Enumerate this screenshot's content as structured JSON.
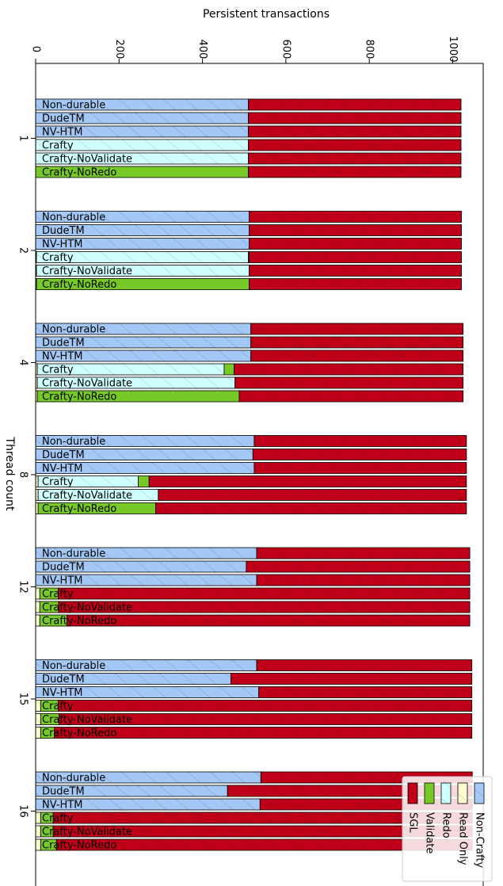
{
  "chart_data": {
    "type": "bar",
    "orientation": "horizontal-stacked",
    "xlabel": "Persistent transactions",
    "ylabel": "Thread count",
    "xlim": [
      0,
      1050
    ],
    "xticks": [
      0,
      200,
      400,
      600,
      800,
      1000
    ],
    "segment_order": [
      "Non-Crafty",
      "Read Only",
      "Redo",
      "Validate",
      "SGL"
    ],
    "legend": {
      "placement": "lower-right",
      "entries": [
        {
          "name": "Non-Crafty",
          "color": "#a3c8f5",
          "hatch": true
        },
        {
          "name": "Read Only",
          "color": "#fffbd0",
          "hatch": true
        },
        {
          "name": "Redo",
          "color": "#cfffff",
          "hatch": true
        },
        {
          "name": "Validate",
          "color": "#77c928",
          "hatch": false
        },
        {
          "name": "SGL",
          "color": "#c00018",
          "hatch": true
        }
      ]
    },
    "groups": [
      {
        "thread_count": "1",
        "bars": [
          {
            "label": "Non-durable",
            "values": [
              510,
              0,
              0,
              0,
              510
            ]
          },
          {
            "label": "DudeTM",
            "values": [
              510,
              0,
              0,
              0,
              510
            ]
          },
          {
            "label": "NV-HTM",
            "values": [
              510,
              0,
              0,
              0,
              510
            ]
          },
          {
            "label": "Crafty",
            "values": [
              0,
              0,
              510,
              0,
              510
            ]
          },
          {
            "label": "Crafty-NoValidate",
            "values": [
              0,
              0,
              510,
              0,
              510
            ]
          },
          {
            "label": "Crafty-NoRedo",
            "values": [
              0,
              0,
              0,
              510,
              510
            ]
          }
        ]
      },
      {
        "thread_count": "2",
        "bars": [
          {
            "label": "Non-durable",
            "values": [
              512,
              0,
              0,
              0,
              509
            ]
          },
          {
            "label": "DudeTM",
            "values": [
              512,
              0,
              0,
              0,
              509
            ]
          },
          {
            "label": "NV-HTM",
            "values": [
              512,
              0,
              0,
              0,
              509
            ]
          },
          {
            "label": "Crafty",
            "values": [
              0,
              2,
              508,
              2,
              509
            ]
          },
          {
            "label": "Crafty-NoValidate",
            "values": [
              0,
              2,
              510,
              0,
              509
            ]
          },
          {
            "label": "Crafty-NoRedo",
            "values": [
              0,
              2,
              0,
              510,
              509
            ]
          }
        ]
      },
      {
        "thread_count": "4",
        "bars": [
          {
            "label": "Non-durable",
            "values": [
              516,
              0,
              0,
              0,
              509
            ]
          },
          {
            "label": "DudeTM",
            "values": [
              516,
              0,
              0,
              0,
              509
            ]
          },
          {
            "label": "NV-HTM",
            "values": [
              516,
              0,
              0,
              0,
              509
            ]
          },
          {
            "label": "Crafty",
            "values": [
              0,
              4,
              448,
              24,
              549
            ]
          },
          {
            "label": "Crafty-NoValidate",
            "values": [
              0,
              4,
              474,
              0,
              547
            ]
          },
          {
            "label": "Crafty-NoRedo",
            "values": [
              0,
              4,
              0,
              484,
              537
            ]
          }
        ]
      },
      {
        "thread_count": "8",
        "bars": [
          {
            "label": "Non-durable",
            "values": [
              524,
              0,
              0,
              0,
              509
            ]
          },
          {
            "label": "DudeTM",
            "values": [
              521,
              0,
              0,
              0,
              512
            ]
          },
          {
            "label": "NV-HTM",
            "values": [
              524,
              0,
              0,
              0,
              509
            ]
          },
          {
            "label": "Crafty",
            "values": [
              0,
              6,
              240,
              26,
              761
            ]
          },
          {
            "label": "Crafty-NoValidate",
            "values": [
              0,
              6,
              288,
              0,
              739
            ]
          },
          {
            "label": "Crafty-NoRedo",
            "values": [
              0,
              6,
              0,
              282,
              745
            ]
          }
        ]
      },
      {
        "thread_count": "12",
        "bars": [
          {
            "label": "Non-durable",
            "values": [
              530,
              0,
              0,
              0,
              511
            ]
          },
          {
            "label": "DudeTM",
            "values": [
              505,
              0,
              0,
              0,
              536
            ]
          },
          {
            "label": "NV-HTM",
            "values": [
              530,
              0,
              0,
              0,
              511
            ]
          },
          {
            "label": "Crafty",
            "values": [
              0,
              10,
              0,
              44,
              987
            ]
          },
          {
            "label": "Crafty-NoValidate",
            "values": [
              0,
              10,
              0,
              45,
              986
            ]
          },
          {
            "label": "Crafty-NoRedo",
            "values": [
              0,
              10,
              0,
              65,
              966
            ]
          }
        ]
      },
      {
        "thread_count": "15",
        "bars": [
          {
            "label": "Non-durable",
            "values": [
              530,
              0,
              0,
              0,
              516
            ]
          },
          {
            "label": "DudeTM",
            "values": [
              468,
              0,
              0,
              0,
              578
            ]
          },
          {
            "label": "NV-HTM",
            "values": [
              535,
              0,
              0,
              0,
              511
            ]
          },
          {
            "label": "Crafty",
            "values": [
              0,
              12,
              0,
              42,
              992
            ]
          },
          {
            "label": "Crafty-NoValidate",
            "values": [
              0,
              12,
              0,
              44,
              990
            ]
          },
          {
            "label": "Crafty-NoRedo",
            "values": [
              0,
              12,
              0,
              33,
              1001
            ]
          }
        ]
      },
      {
        "thread_count": "16",
        "bars": [
          {
            "label": "Non-durable",
            "values": [
              540,
              0,
              0,
              0,
              507
            ]
          },
          {
            "label": "DudeTM",
            "values": [
              460,
              0,
              0,
              0,
              587
            ]
          },
          {
            "label": "NV-HTM",
            "values": [
              538,
              0,
              0,
              0,
              509
            ]
          },
          {
            "label": "Crafty",
            "values": [
              0,
              12,
              0,
              30,
              1005
            ]
          },
          {
            "label": "Crafty-NoValidate",
            "values": [
              0,
              12,
              0,
              30,
              1005
            ]
          },
          {
            "label": "Crafty-NoRedo",
            "values": [
              0,
              12,
              0,
              38,
              997
            ]
          }
        ]
      }
    ]
  }
}
